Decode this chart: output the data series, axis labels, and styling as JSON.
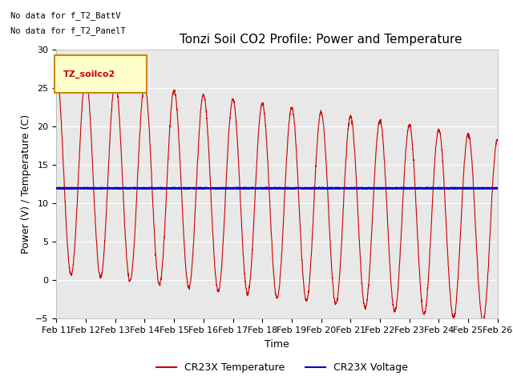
{
  "title": "Tonzi Soil CO2 Profile: Power and Temperature",
  "ylabel": "Power (V) / Temperature (C)",
  "xlabel": "Time",
  "ylim": [
    -5,
    30
  ],
  "yticks": [
    -5,
    0,
    5,
    10,
    15,
    20,
    25,
    30
  ],
  "x_tick_labels": [
    "Feb 11",
    "Feb 12",
    "Feb 13",
    "Feb 14",
    "Feb 15",
    "Feb 16",
    "Feb 17",
    "Feb 18",
    "Feb 19",
    "Feb 20",
    "Feb 21",
    "Feb 22",
    "Feb 23",
    "Feb 24",
    "Feb 25",
    "Feb 26"
  ],
  "voltage_value": 12.0,
  "annotations": [
    "No data for f_T2_BattV",
    "No data for f_T2_PanelT"
  ],
  "legend_label_red": "CR23X Temperature",
  "legend_label_blue": "CR23X Voltage",
  "red_color": "#cc0000",
  "blue_color": "#0000cc",
  "fig_bg_color": "#ffffff",
  "plot_bg_color": "#e8e8e8",
  "title_fontsize": 11,
  "axis_label_fontsize": 9,
  "tick_fontsize": 8,
  "legend_box_facecolor": "#ffffcc",
  "legend_box_edgecolor": "#cc8800",
  "legend_box_text": "TZ_soilco2",
  "legend_box_text_color": "#cc0000"
}
